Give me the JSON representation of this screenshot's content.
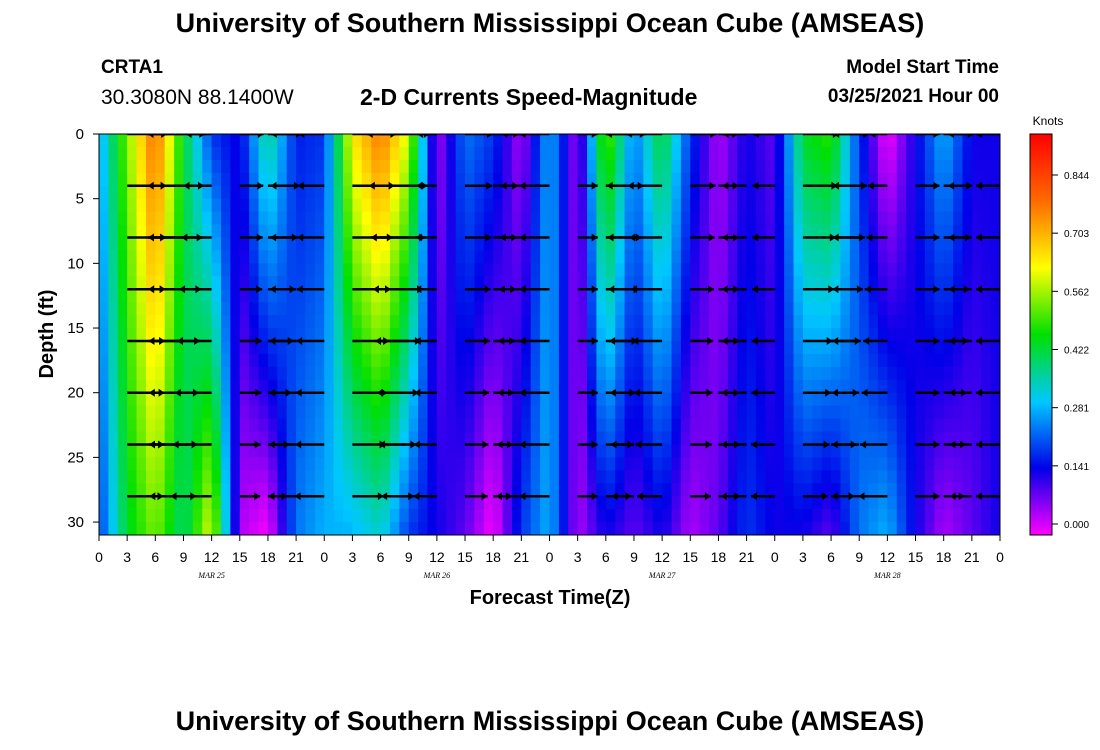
{
  "header": {
    "title": "University of Southern Mississippi Ocean Cube (AMSEAS)",
    "station": "CRTA1",
    "coords": "30.3080N  88.1400W",
    "chart_title": "2-D Currents Speed-Magnitude",
    "model_label": "Model Start Time",
    "model_value": "03/25/2021 Hour 00"
  },
  "footer": {
    "title": "University of Southern Mississippi Ocean Cube (AMSEAS)"
  },
  "chart_data": {
    "type": "heatmap",
    "title": "2-D Currents Speed-Magnitude",
    "xlabel": "Forecast Time(Z)",
    "ylabel": "Depth (ft)",
    "x_tick_labels": [
      "0",
      "3",
      "6",
      "9",
      "12",
      "15",
      "18",
      "21",
      "0",
      "3",
      "6",
      "9",
      "12",
      "15",
      "18",
      "21",
      "0",
      "3",
      "6",
      "9",
      "12",
      "15",
      "18",
      "21",
      "0",
      "3",
      "6",
      "9",
      "12",
      "15",
      "18",
      "21",
      "0"
    ],
    "x_date_labels": [
      "MAR 25",
      "MAR 26",
      "MAR 27",
      "MAR 28"
    ],
    "x_range_hours": [
      0,
      96
    ],
    "y_range_ft": [
      0,
      31
    ],
    "y_ticks": [
      0,
      5,
      10,
      15,
      20,
      25,
      30
    ],
    "y_inverted": true,
    "colorbar": {
      "unit": "Knots",
      "tick_labels": [
        "0.844",
        "0.703",
        "0.562",
        "0.422",
        "0.281",
        "0.141",
        "0.000"
      ],
      "colors": [
        "#ff00ff",
        "#0000e8",
        "#00c8ff",
        "#00e000",
        "#ffff00",
        "#ff6a00",
        "#ff0000"
      ]
    },
    "vector_depths_ft": [
      0,
      4,
      8,
      12,
      16,
      20,
      24,
      28
    ],
    "vector_times_hours": [
      0,
      3,
      6,
      9,
      12,
      15,
      18,
      21,
      24,
      27,
      30,
      33,
      36,
      39,
      42,
      45,
      48,
      51,
      54,
      57,
      60,
      63,
      66,
      69,
      72,
      75,
      78,
      81,
      84,
      87,
      90,
      93,
      96
    ],
    "speed_profile_by_time": [
      {
        "hour": 0,
        "surface": 0.28,
        "bottom": 0.2
      },
      {
        "hour": 3,
        "surface": 0.55,
        "bottom": 0.45
      },
      {
        "hour": 6,
        "surface": 0.8,
        "bottom": 0.55
      },
      {
        "hour": 9,
        "surface": 0.45,
        "bottom": 0.4
      },
      {
        "hour": 12,
        "surface": 0.2,
        "bottom": 0.62
      },
      {
        "hour": 15,
        "surface": 0.15,
        "bottom": 0.05
      },
      {
        "hour": 18,
        "surface": 0.4,
        "bottom": 0.0
      },
      {
        "hour": 21,
        "surface": 0.18,
        "bottom": 0.25
      },
      {
        "hour": 24,
        "surface": 0.2,
        "bottom": 0.3
      },
      {
        "hour": 27,
        "surface": 0.65,
        "bottom": 0.3
      },
      {
        "hour": 30,
        "surface": 0.78,
        "bottom": 0.35
      },
      {
        "hour": 33,
        "surface": 0.6,
        "bottom": 0.2
      },
      {
        "hour": 36,
        "surface": 0.05,
        "bottom": 0.15
      },
      {
        "hour": 39,
        "surface": 0.25,
        "bottom": 0.1
      },
      {
        "hour": 42,
        "surface": 0.2,
        "bottom": 0.0
      },
      {
        "hour": 45,
        "surface": 0.05,
        "bottom": 0.2
      },
      {
        "hour": 48,
        "surface": 0.3,
        "bottom": 0.3
      },
      {
        "hour": 51,
        "surface": 0.05,
        "bottom": 0.05
      },
      {
        "hour": 54,
        "surface": 0.55,
        "bottom": 0.15
      },
      {
        "hour": 57,
        "surface": 0.25,
        "bottom": 0.1
      },
      {
        "hour": 60,
        "surface": 0.45,
        "bottom": 0.15
      },
      {
        "hour": 63,
        "surface": 0.2,
        "bottom": 0.05
      },
      {
        "hour": 66,
        "surface": 0.05,
        "bottom": 0.1
      },
      {
        "hour": 69,
        "surface": 0.15,
        "bottom": 0.2
      },
      {
        "hour": 72,
        "surface": 0.1,
        "bottom": 0.15
      },
      {
        "hour": 75,
        "surface": 0.45,
        "bottom": 0.15
      },
      {
        "hour": 78,
        "surface": 0.5,
        "bottom": 0.1
      },
      {
        "hour": 81,
        "surface": 0.2,
        "bottom": 0.25
      },
      {
        "hour": 84,
        "surface": 0.0,
        "bottom": 0.3
      },
      {
        "hour": 87,
        "surface": 0.15,
        "bottom": 0.15
      },
      {
        "hour": 90,
        "surface": 0.3,
        "bottom": 0.05
      },
      {
        "hour": 93,
        "surface": 0.15,
        "bottom": 0.1
      },
      {
        "hour": 96,
        "surface": 0.15,
        "bottom": 0.15
      }
    ],
    "grid": false,
    "legend": "colorbar right"
  }
}
